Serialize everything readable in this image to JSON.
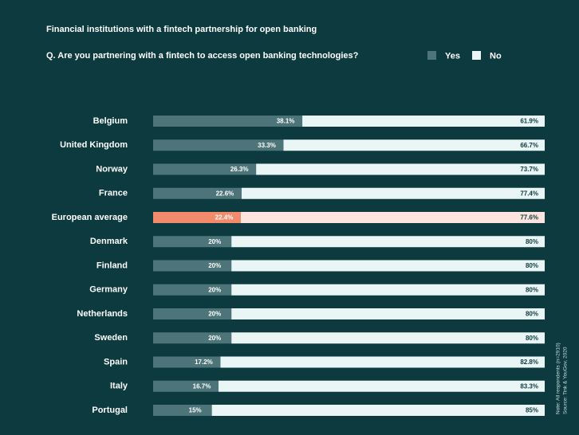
{
  "chart_data": {
    "type": "stacked_barh",
    "title": "Financial institutions with a fintech partnership for open banking",
    "subtitle": "Q. Are you partnering with a fintech to access open banking technologies?",
    "categories": [
      "Belgium",
      "United Kingdom",
      "Norway",
      "France",
      "European average",
      "Denmark",
      "Finland",
      "Germany",
      "Netherlands",
      "Sweden",
      "Spain",
      "Italy",
      "Portugal"
    ],
    "series": [
      {
        "name": "Yes",
        "color": "#4d7479",
        "colors": [
          "#4d7479",
          "#4d7479",
          "#4d7479",
          "#4d7479",
          "#f28b6b",
          "#4d7479",
          "#4d7479",
          "#4d7479",
          "#4d7479",
          "#4d7479",
          "#4d7479",
          "#4d7479",
          "#4d7479"
        ],
        "values": [
          38.1,
          33.3,
          26.3,
          22.6,
          22.4,
          20,
          20,
          20,
          20,
          20,
          17.2,
          16.7,
          15
        ],
        "value_labels": [
          "38.1%",
          "33.3%",
          "26.3%",
          "22.6%",
          "22.4%",
          "20%",
          "20%",
          "20%",
          "20%",
          "20%",
          "17.2%",
          "16.7%",
          "15%"
        ]
      },
      {
        "name": "No",
        "color": "#eaf6f6",
        "colors": [
          "#eaf6f6",
          "#eaf6f6",
          "#eaf6f6",
          "#eaf6f6",
          "#fde4de",
          "#eaf6f6",
          "#eaf6f6",
          "#eaf6f6",
          "#eaf6f6",
          "#eaf6f6",
          "#eaf6f6",
          "#eaf6f6",
          "#eaf6f6"
        ],
        "values": [
          61.9,
          66.7,
          73.7,
          77.4,
          77.6,
          80,
          80,
          80,
          80,
          80,
          82.8,
          83.3,
          85
        ],
        "value_labels": [
          "61.9%",
          "66.7%",
          "73.7%",
          "77.4%",
          "77.6%",
          "80%",
          "80%",
          "80%",
          "80%",
          "80%",
          "82.8%",
          "83.3%",
          "85%"
        ]
      }
    ],
    "xlim": [
      0,
      100
    ],
    "notes": [
      "Note: All respondents (n=2910)",
      "Source: Tink & YouGov, 2020"
    ]
  }
}
